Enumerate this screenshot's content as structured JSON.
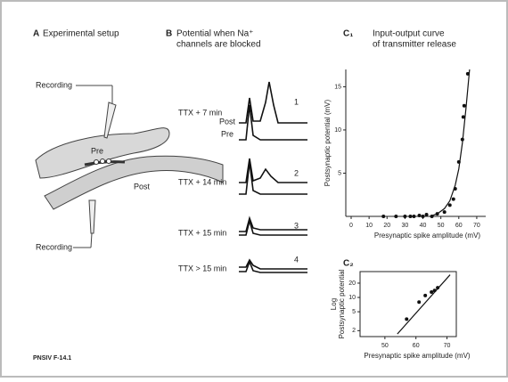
{
  "footer": "PNSIV F-14.1",
  "panel_a": {
    "label": "A",
    "title": "Experimental setup",
    "recording_top": "Recording",
    "pre": "Pre",
    "post": "Post",
    "recording_bottom": "Recording"
  },
  "panel_b": {
    "label": "B",
    "title": [
      "Potential when Na⁺",
      "channels are blocked"
    ],
    "trace_labels": [
      "Post",
      "Pre"
    ],
    "rows": [
      {
        "condition": "TTX + 7 min",
        "number": 1
      },
      {
        "condition": "TTX + 14 min",
        "number": 2
      },
      {
        "condition": "TTX + 15 min",
        "number": 3
      },
      {
        "condition": "TTX > 15 min",
        "number": 4
      }
    ]
  },
  "chart_data": [
    {
      "type": "scatter",
      "label": "C₁",
      "title": [
        "Input-output curve",
        "of transmitter release"
      ],
      "xlabel": "Presynaptic spike amplitude (mV)",
      "ylabel": [
        "Postsynaptic potential (mV)"
      ],
      "xlim": [
        0,
        75
      ],
      "ylim": [
        0,
        17
      ],
      "xticks": [
        0,
        10,
        20,
        30,
        40,
        50,
        60,
        70
      ],
      "yticks": [
        5,
        10,
        15
      ],
      "color": "#111111",
      "log_y": false,
      "box": false,
      "series": [
        {
          "mode": "markers",
          "x": [
            18,
            25,
            30,
            33,
            35,
            38,
            40,
            42,
            45,
            48,
            52,
            55,
            57,
            58,
            60,
            62,
            62.5,
            63,
            65
          ],
          "values": [
            0,
            0,
            0,
            0,
            0,
            0.1,
            0,
            0.2,
            0,
            0.3,
            0.5,
            1.3,
            2,
            3.2,
            6.3,
            8.9,
            11.5,
            12.8,
            16.5
          ]
        },
        {
          "mode": "line",
          "x": [
            44,
            48,
            52,
            55,
            58,
            60,
            62,
            64,
            66
          ],
          "values": [
            0,
            0.3,
            0.9,
            1.8,
            3.6,
            5.5,
            8.5,
            12.5,
            17
          ]
        }
      ]
    },
    {
      "type": "scatter",
      "label": "C₂",
      "title": [],
      "xlabel": "Presynaptic spike amplitude (mV)",
      "ylabel": [
        "Log",
        "Postsynaptic potential"
      ],
      "xlim": [
        42,
        73
      ],
      "ylim": [
        1.5,
        35
      ],
      "xticks": [
        50,
        60,
        70
      ],
      "yticks": [
        2,
        5,
        10,
        20
      ],
      "color": "#111111",
      "log_y": true,
      "box": true,
      "series": [
        {
          "mode": "markers",
          "x": [
            57,
            61,
            63,
            65,
            66,
            67
          ],
          "values": [
            3.5,
            8,
            11,
            13,
            14,
            16
          ]
        },
        {
          "mode": "line",
          "x": [
            54,
            71
          ],
          "values": [
            1.7,
            30
          ]
        }
      ]
    }
  ]
}
